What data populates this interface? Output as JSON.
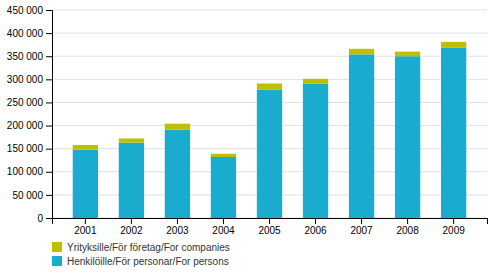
{
  "chart_data": {
    "type": "bar",
    "stacked": true,
    "categories": [
      "2001",
      "2002",
      "2003",
      "2004",
      "2005",
      "2006",
      "2007",
      "2008",
      "2009"
    ],
    "series": [
      {
        "name": "Henkilöille/För personar/For persons",
        "color": "#1AACCF",
        "values": [
          148000,
          163000,
          191000,
          132000,
          278000,
          291000,
          354000,
          350000,
          368000
        ]
      },
      {
        "name": "Yrityksille/För företag/For companies",
        "color": "#BFBF00",
        "values": [
          10000,
          9000,
          13000,
          7000,
          13000,
          10000,
          12000,
          10000,
          13000
        ]
      }
    ],
    "ylim": [
      0,
      450000
    ],
    "yticks": [
      0,
      {
        "value": 50000,
        "label": "50 000"
      },
      {
        "value": 100000,
        "label": "100 000"
      },
      {
        "value": 150000,
        "label": "150 000"
      },
      {
        "value": 200000,
        "label": "200 000"
      },
      {
        "value": 250000,
        "label": "250 000"
      },
      {
        "value": 300000,
        "label": "300 000"
      },
      {
        "value": 350000,
        "label": "350 000"
      },
      {
        "value": 400000,
        "label": "400 000"
      },
      {
        "value": 450000,
        "label": "450 000"
      }
    ],
    "grid": true,
    "legend": "bottom"
  }
}
